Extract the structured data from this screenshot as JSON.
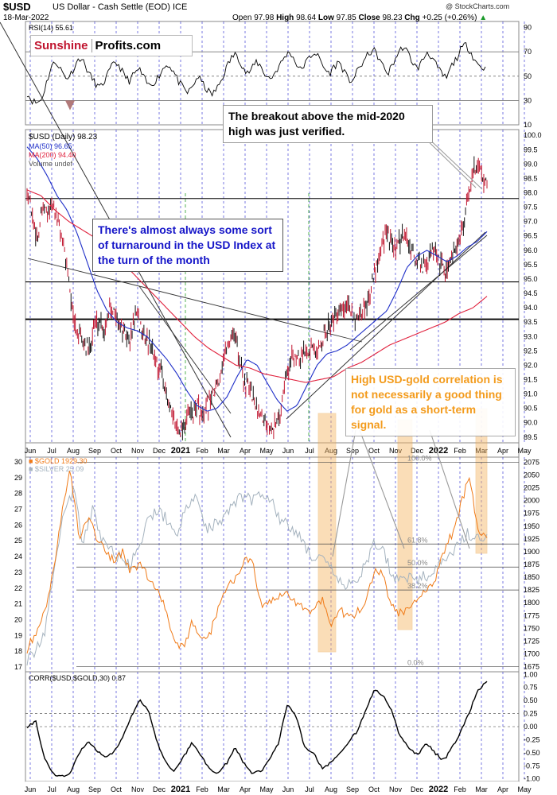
{
  "header": {
    "symbol": "$USD",
    "subtitle": "US Dollar - Cash Settle (EOD)  ICE",
    "date": "18-Mar-2022",
    "open_label": "Open",
    "open": "97.98",
    "high_label": "High",
    "high": "98.64",
    "low_label": "Low",
    "low": "97.85",
    "close_label": "Close",
    "close": "98.23",
    "chg_label": "Chg",
    "chg": "+0.25 (+0.26%)",
    "watermark": "@ StockCharts.com"
  },
  "logo": {
    "part1": "Sunshine",
    "part2": "Profits.com"
  },
  "annotations": {
    "breakout": "The breakout above the mid-2020 high was just verified.",
    "turnaround": "There's almost always some sort of turnaround in the USD Index at the turn of the month",
    "correlation": "High USD-gold correlation is not necessarily a good thing for gold as a short-term signal."
  },
  "colors": {
    "usd_bars": "#c0152f",
    "ma50": "#1f2fc8",
    "ma200": "#e0203c",
    "gold": "#f07a17",
    "silver": "#a4b2be",
    "rsi": "#000000",
    "corr": "#000000",
    "highlight": "#f5b461",
    "grid_month": "#2222cc"
  },
  "chart_data": [
    {
      "panel": "rsi",
      "type": "line",
      "label": "RSI(14) 55.61",
      "y_ticks": [
        10,
        30,
        50,
        70,
        90
      ],
      "ylim": [
        10,
        95
      ],
      "reference_lines": [
        30,
        50,
        70
      ],
      "series": [
        {
          "name": "RSI(14)",
          "values": [
            36,
            30,
            28,
            31,
            45,
            58,
            62,
            55,
            48,
            52,
            60,
            66,
            58,
            50,
            44,
            40,
            47,
            55,
            62,
            58,
            50,
            46,
            52,
            56,
            48,
            42,
            45,
            50,
            57,
            60,
            54,
            46,
            40,
            36,
            42,
            50,
            44,
            38,
            35,
            40,
            48,
            58,
            66,
            68,
            60,
            52,
            55,
            62,
            58,
            50,
            48,
            54,
            60,
            67,
            70,
            62,
            55,
            60,
            66,
            70,
            64,
            56,
            52,
            58,
            62,
            54,
            46,
            48,
            56,
            62,
            68,
            72,
            66,
            58,
            52,
            60,
            68,
            74,
            70,
            62,
            56,
            62,
            70,
            66,
            58,
            52,
            48,
            58,
            64,
            72,
            76,
            70,
            62,
            58,
            56
          ]
        }
      ]
    },
    {
      "panel": "usd",
      "type": "line",
      "title": "$USD (Daily) 98.23",
      "legend": [
        "MA(50) 96.65",
        "MA(200) 94.40",
        "Volume undef"
      ],
      "y_ticks": [
        89.5,
        90.0,
        90.5,
        91.0,
        91.5,
        92.0,
        92.5,
        93.0,
        93.5,
        94.0,
        94.5,
        95.0,
        95.5,
        96.0,
        96.5,
        97.0,
        97.5,
        98.0,
        98.5,
        99.0,
        99.5,
        100.0
      ],
      "ylim": [
        89.3,
        100.2
      ],
      "x_ticks": [
        "Jun",
        "Jul",
        "Aug",
        "Sep",
        "Oct",
        "Nov",
        "Dec",
        "2021",
        "Feb",
        "Mar",
        "Apr",
        "May",
        "Jun",
        "Jul",
        "Aug",
        "Sep",
        "Oct",
        "Nov",
        "Dec",
        "2022",
        "Feb",
        "Mar",
        "Apr",
        "May"
      ],
      "horizontal_levels": [
        97.8,
        94.9,
        93.6
      ],
      "series": [
        {
          "name": "$USD",
          "values": [
            98.2,
            97.2,
            96.4,
            97.4,
            97.3,
            97.6,
            96.9,
            96.2,
            95.2,
            93.5,
            93.1,
            92.7,
            92.5,
            93.4,
            93.6,
            93.2,
            94.1,
            93.8,
            93.4,
            93.0,
            92.9,
            93.8,
            93.3,
            93.0,
            92.6,
            92.1,
            91.8,
            90.9,
            90.2,
            89.9,
            89.8,
            90.2,
            90.3,
            90.6,
            90.1,
            90.6,
            91.0,
            91.4,
            92.2,
            92.8,
            93.2,
            92.3,
            91.4,
            91.2,
            90.7,
            90.4,
            90.1,
            90.0,
            89.9,
            90.3,
            91.6,
            92.1,
            92.4,
            92.3,
            92.6,
            92.7,
            92.3,
            92.9,
            93.2,
            93.6,
            93.7,
            93.9,
            94.0,
            93.8,
            93.5,
            93.9,
            94.3,
            95.0,
            95.8,
            96.4,
            96.5,
            96.0,
            96.2,
            96.6,
            96.1,
            95.7,
            95.6,
            95.3,
            95.9,
            95.9,
            95.5,
            95.3,
            95.7,
            96.2,
            96.6,
            97.4,
            98.5,
            99.1,
            98.7,
            98.2
          ]
        },
        {
          "name": "MA(50)",
          "values": [
            99.6,
            99.2,
            98.6,
            97.9,
            97.4,
            96.6,
            95.6,
            94.6,
            93.9,
            93.5,
            93.3,
            93.2,
            93.0,
            92.6,
            92.2,
            91.7,
            91.1,
            90.6,
            90.4,
            90.5,
            90.9,
            91.6,
            92.2,
            92.0,
            91.4,
            90.8,
            90.4,
            90.6,
            91.3,
            92.0,
            92.4,
            92.5,
            92.7,
            93.0,
            93.3,
            93.6,
            93.9,
            94.6,
            95.4,
            95.8,
            96.0,
            95.8,
            95.6,
            95.8,
            96.1,
            96.3,
            96.65
          ]
        },
        {
          "name": "MA(200)",
          "values": [
            98.1,
            97.9,
            97.4,
            97.0,
            96.7,
            96.4,
            96.0,
            95.5,
            95.0,
            94.5,
            94.0,
            93.5,
            93.0,
            92.6,
            92.3,
            92.0,
            91.9,
            91.7,
            91.6,
            91.5,
            91.4,
            91.5,
            91.6,
            91.9,
            92.1,
            92.4,
            92.7,
            92.9,
            93.1,
            93.3,
            93.5,
            93.8,
            94.0,
            94.4
          ]
        }
      ]
    },
    {
      "panel": "gold_silver",
      "type": "line",
      "legend": [
        "$GOLD 1929.30",
        "$SILVER 25.09"
      ],
      "y_ticks_left": [
        17,
        18,
        19,
        20,
        21,
        22,
        23,
        24,
        25,
        26,
        27,
        28,
        29,
        30
      ],
      "y_ticks_right": [
        1675,
        1700,
        1725,
        1750,
        1775,
        1800,
        1825,
        1850,
        1875,
        1900,
        1925,
        1950,
        1975,
        2000,
        2025,
        2050,
        2075
      ],
      "ylim_left": [
        16.7,
        30.3
      ],
      "ylim_right": [
        1665,
        2085
      ],
      "fib_labels": [
        "100.0%",
        "61.8%",
        "50.0%",
        "38.2%",
        "0.0%"
      ],
      "fib_levels_gold": [
        2075,
        1915,
        1870,
        1825,
        1675
      ],
      "series": [
        {
          "name": "$GOLD",
          "values": [
            1710,
            1740,
            1780,
            1860,
            1975,
            2060,
            1930,
            1965,
            1930,
            1900,
            1880,
            1900,
            1860,
            1880,
            1845,
            1830,
            1790,
            1720,
            1710,
            1760,
            1725,
            1735,
            1790,
            1830,
            1850,
            1885,
            1875,
            1790,
            1800,
            1810,
            1820,
            1800,
            1790,
            1780,
            1810,
            1760,
            1790,
            1770,
            1780,
            1795,
            1860,
            1860,
            1790,
            1780,
            1790,
            1810,
            1830,
            1840,
            1900,
            1935,
            1990,
            2055,
            1935,
            1929
          ]
        },
        {
          "name": "$SILVER",
          "values": [
            17.5,
            18.0,
            19.5,
            24.0,
            27.0,
            28.2,
            24.8,
            27.0,
            25.0,
            24.5,
            23.8,
            23.5,
            24.5,
            26.5,
            27.0,
            26.2,
            25.5,
            27.0,
            27.8,
            25.8,
            26.1,
            26.5,
            27.5,
            27.8,
            27.6,
            28.1,
            27.7,
            26.3,
            25.8,
            25.4,
            24.3,
            23.8,
            23.5,
            22.6,
            22.0,
            22.5,
            23.4,
            24.8,
            24.4,
            22.6,
            22.9,
            22.6,
            22.6,
            23.0,
            23.5,
            24.0,
            24.7,
            25.5,
            25.2,
            25.1
          ]
        }
      ]
    },
    {
      "panel": "correlation",
      "type": "line",
      "label": "CORR($USD,$GOLD,30) 0.87",
      "y_ticks": [
        -1.0,
        -0.75,
        -0.5,
        -0.25,
        0.0,
        0.25,
        0.5,
        0.75,
        1.0
      ],
      "ylim": [
        -1.05,
        1.05
      ],
      "reference_lines": [
        0.0,
        0.25
      ],
      "highlight_bands": [
        "Aug 2021",
        "Nov 2021",
        "Mar 2022"
      ],
      "series": [
        {
          "name": "CORR($USD,$GOLD,30)",
          "values": [
            0.0,
            0.1,
            -0.6,
            -0.9,
            -0.95,
            -0.9,
            -0.5,
            -0.3,
            -0.45,
            -0.6,
            -0.5,
            -0.2,
            0.2,
            0.5,
            0.3,
            -0.3,
            -0.7,
            -0.85,
            -0.6,
            -0.3,
            -0.55,
            -0.8,
            -0.9,
            -0.7,
            -0.4,
            -0.7,
            -0.9,
            -0.85,
            -0.6,
            -0.3,
            0.45,
            0.2,
            -0.4,
            -0.5,
            -0.8,
            -0.7,
            -0.5,
            -0.3,
            -0.1,
            0.3,
            0.7,
            0.6,
            0.3,
            -0.2,
            -0.4,
            -0.55,
            -0.3,
            -0.5,
            -0.65,
            -0.4,
            -0.1,
            0.3,
            0.7,
            0.87
          ]
        }
      ]
    }
  ]
}
